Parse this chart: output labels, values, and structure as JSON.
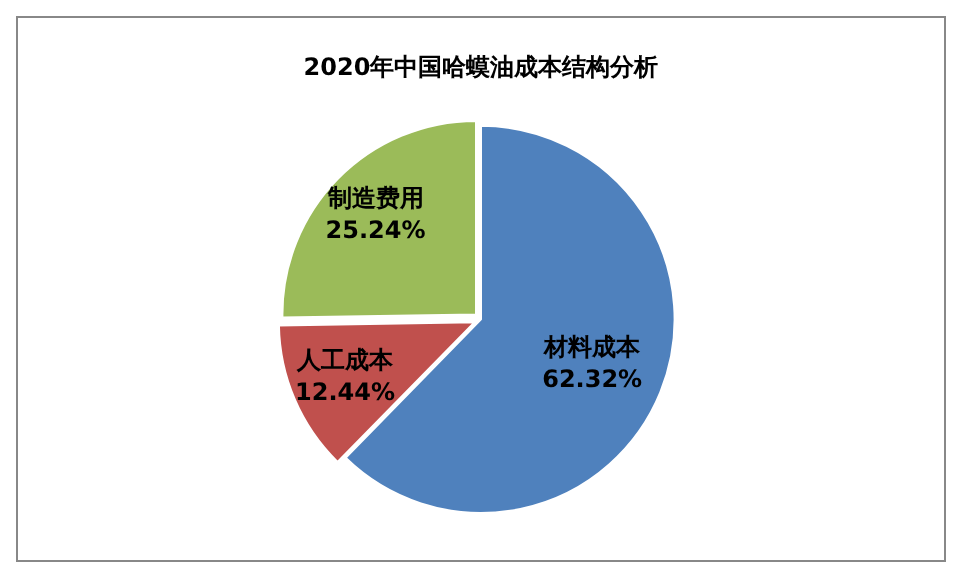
{
  "chart_data": {
    "type": "pie",
    "title": "2020年中国哈蟆油成本结构分析",
    "categories": [
      "材料成本",
      "人工成本",
      "制造费用"
    ],
    "values": [
      62.32,
      12.44,
      25.24
    ],
    "value_labels": [
      "62.32%",
      "12.44%",
      "25.24%"
    ],
    "colors": [
      "#4f81bd",
      "#c0504d",
      "#9bbb59"
    ],
    "legend": false
  }
}
